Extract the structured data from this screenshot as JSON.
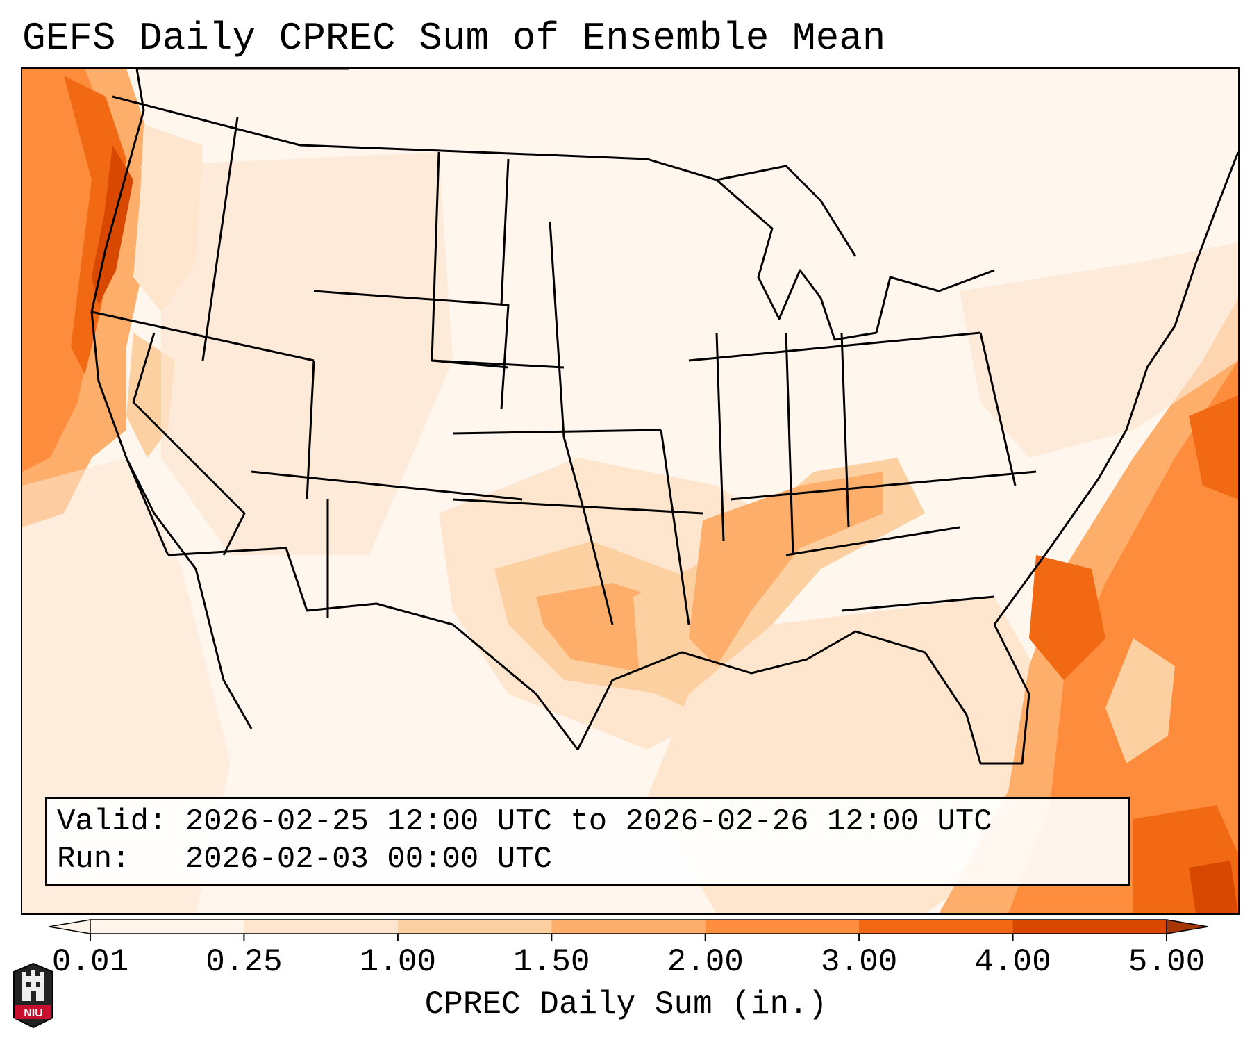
{
  "title": "GEFS Daily CPREC Sum of Ensemble Mean",
  "info": {
    "valid_label": "Valid:",
    "valid_text": "2026-02-25 12:00 UTC to 2026-02-26 12:00 UTC",
    "run_label": "Run:",
    "run_text": "2026-02-03 00:00 UTC"
  },
  "colorbar": {
    "label": "CPREC Daily Sum (in.)",
    "ticks": [
      "0.01",
      "0.25",
      "1.00",
      "1.50",
      "2.00",
      "3.00",
      "4.00",
      "5.00"
    ],
    "colors": [
      "#fff5eb",
      "#fee6ce",
      "#fdd0a2",
      "#fdae6b",
      "#fd8d3c",
      "#f16913",
      "#d94801",
      "#a63603"
    ],
    "extend": "both"
  },
  "logo": {
    "text": "NIU",
    "icon": "niu-castle-logo-icon"
  },
  "map": {
    "projection": "lambert-conformal",
    "region": "CONUS"
  }
}
